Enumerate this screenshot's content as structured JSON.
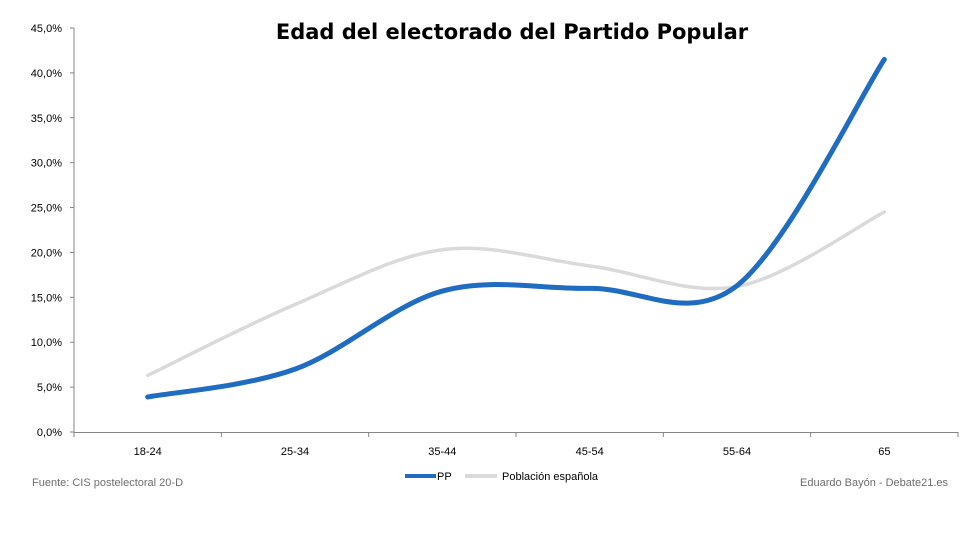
{
  "chart_data": {
    "type": "line",
    "title": "Edad del electorado del Partido Popular",
    "categories": [
      "18-24",
      "25-34",
      "35-44",
      "45-54",
      "55-64",
      "65"
    ],
    "y_ticks": [
      "0,0%",
      "5,0%",
      "10,0%",
      "15,0%",
      "20,0%",
      "25,0%",
      "30,0%",
      "35,0%",
      "40,0%",
      "45,0%"
    ],
    "ylim": [
      0,
      45
    ],
    "grid": false,
    "legend_position": "bottom",
    "series": [
      {
        "name": "PP",
        "values": [
          3.9,
          7.0,
          15.7,
          16.0,
          16.3,
          41.5
        ],
        "color": "#1f6cc1"
      },
      {
        "name": "Población española",
        "values": [
          6.3,
          14.2,
          20.3,
          18.5,
          16.2,
          24.5
        ],
        "color": "#dadada"
      }
    ],
    "source_note": "Fuente: CIS postelectoral 20-D",
    "credit": "Eduardo Bayón - Debate21.es"
  }
}
